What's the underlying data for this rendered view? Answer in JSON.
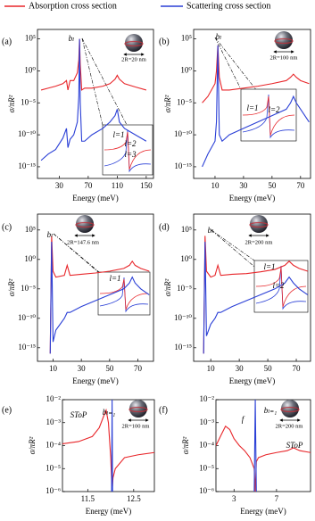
{
  "chart_data": [
    {
      "type": "line",
      "panel_label": "(a)",
      "xlabel": "Energy (meV)",
      "ylabel": "σ/πR²",
      "ylog": true,
      "xlim": [
        0,
        160
      ],
      "ylim": [
        1.5e-17,
        3000000
      ],
      "xticks": [
        30,
        70,
        110,
        150
      ],
      "yticks": [
        {
          "value": 100000,
          "label": "10⁵"
        },
        {
          "value": 1,
          "label": "10⁰"
        },
        {
          "value": 1e-05,
          "label": "10⁻⁵"
        },
        {
          "value": 1e-10,
          "label": "10⁻¹⁰"
        },
        {
          "value": 1e-15,
          "label": "10⁻¹⁵"
        }
      ],
      "x": [
        5,
        15,
        25,
        35,
        40,
        42,
        45,
        50,
        55,
        57,
        58,
        59,
        61,
        65,
        75,
        90,
        100,
        107,
        110,
        113,
        120,
        135,
        150
      ],
      "series": [
        {
          "name": "Absorption cross section",
          "color": "#e8262a",
          "values": [
            0.001,
            0.002,
            0.004,
            0.01,
            0.03,
            0.001,
            0.03,
            0.03,
            0.5,
            50,
            100000,
            10,
            0.001,
            0.002,
            0.002,
            0.004,
            0.01,
            0.05,
            0.2,
            0.05,
            0.01,
            0.003,
            0.001
          ]
        },
        {
          "name": "Scattering cross section",
          "color": "#2a3fd6",
          "values": [
            1e-14,
            1e-13,
            5e-13,
            3e-11,
            1e-09,
            1e-12,
            2e-11,
            1e-10,
            1e-08,
            0.0001,
            100000,
            1e-05,
            1e-11,
            1e-11,
            1e-10,
            1e-09,
            1e-08,
            1e-07,
            1e-06,
            1e-08,
            1e-09,
            1e-10,
            1e-11
          ]
        }
      ],
      "annotations": [
        "bₗ",
        "2R=20 nm",
        "l=1",
        "l=2",
        "l=3"
      ]
    },
    {
      "type": "line",
      "panel_label": "(b)",
      "xlabel": "Energy (meV)",
      "ylabel": "σ/πR²",
      "ylog": true,
      "xlim": [
        -5,
        77
      ],
      "ylim": [
        1.5e-17,
        3000000
      ],
      "xticks": [
        10,
        30,
        50,
        70
      ],
      "yticks": [
        {
          "value": 100000,
          "label": "10⁵"
        },
        {
          "value": 1,
          "label": "10⁰"
        },
        {
          "value": 1e-05,
          "label": "10⁻⁵"
        },
        {
          "value": 1e-10,
          "label": "10⁻¹⁰"
        },
        {
          "value": 1e-15,
          "label": "10⁻¹⁵"
        }
      ],
      "x": [
        1,
        5,
        10,
        11,
        12,
        13,
        15,
        20,
        30,
        40,
        50,
        60,
        63,
        65,
        67,
        70,
        76
      ],
      "series": [
        {
          "color": "#e8262a",
          "values": [
            1e-05,
            0.0001,
            0.01,
            1,
            10000,
            0.1,
            0.001,
            0.001,
            0.002,
            0.004,
            0.01,
            0.03,
            0.1,
            0.3,
            0.1,
            0.03,
            0.01
          ]
        },
        {
          "color": "#2a3fd6",
          "values": [
            1e-15,
            1e-13,
            1e-11,
            1e-08,
            10000,
            1e-10,
            1e-11,
            1e-10,
            1e-09,
            1e-08,
            1e-07,
            1e-06,
            1e-05,
            0.0001,
            1e-05,
            1e-06,
            1e-08
          ]
        }
      ],
      "annotations": [
        "bₗ",
        "2R=100 nm",
        "l=1",
        "l=2"
      ]
    },
    {
      "type": "line",
      "panel_label": "(c)",
      "xlabel": "Energy (meV)",
      "ylabel": "σ/πR²",
      "ylog": true,
      "xlim": [
        -1,
        81
      ],
      "ylim": [
        5e-18,
        50000000
      ],
      "xticks": [
        10,
        30,
        50,
        70
      ],
      "yticks": [
        {
          "value": 100000,
          "label": "10⁵"
        },
        {
          "value": 1,
          "label": "10⁰"
        },
        {
          "value": 1e-05,
          "label": "10⁻⁵"
        },
        {
          "value": 1e-10,
          "label": "10⁻¹⁰"
        },
        {
          "value": 1e-15,
          "label": "10⁻¹⁵"
        }
      ],
      "x": [
        8,
        9,
        10,
        12,
        18,
        20,
        22,
        30,
        40,
        50,
        60,
        64,
        66,
        68,
        72,
        78
      ],
      "series": [
        {
          "color": "#e8262a",
          "values": [
            1e-16,
            10000,
            0.01,
            0.001,
            0.002,
            0.1,
            0.002,
            0.003,
            0.005,
            0.01,
            0.03,
            0.1,
            0.5,
            0.1,
            0.03,
            0.01
          ]
        },
        {
          "color": "#2a3fd6",
          "values": [
            1e-16,
            1000,
            1e-14,
            1e-12,
            1e-10,
            1e-09,
            1e-09,
            1e-08,
            1e-07,
            1e-06,
            1e-05,
            0.0001,
            0.001,
            0.0001,
            1e-05,
            1e-06
          ]
        }
      ],
      "annotations": [
        "bₗ",
        "2R=147.6 nm",
        "l=1"
      ]
    },
    {
      "type": "line",
      "panel_label": "(d)",
      "xlabel": "Energy (meV)",
      "ylabel": "σ/πR²",
      "ylog": true,
      "xlim": [
        -2,
        80
      ],
      "ylim": [
        5e-18,
        50000000
      ],
      "xticks": [
        10,
        30,
        50,
        70
      ],
      "yticks": [
        {
          "value": 100000,
          "label": "10⁵"
        },
        {
          "value": 1,
          "label": "10⁰"
        },
        {
          "value": 1e-05,
          "label": "10⁻⁵"
        },
        {
          "value": 1e-10,
          "label": "10⁻¹⁰"
        },
        {
          "value": 1e-15,
          "label": "10⁻¹⁵"
        }
      ],
      "x": [
        5,
        6,
        7,
        10,
        13,
        15,
        17,
        25,
        35,
        45,
        55,
        62,
        65,
        68,
        72,
        78
      ],
      "series": [
        {
          "color": "#e8262a",
          "values": [
            1e-16,
            10000,
            0.01,
            0.001,
            0.002,
            0.1,
            0.002,
            0.003,
            0.004,
            0.008,
            0.02,
            0.1,
            0.5,
            0.1,
            0.03,
            0.01
          ]
        },
        {
          "color": "#2a3fd6",
          "values": [
            1e-16,
            1000,
            1e-13,
            1e-11,
            1e-10,
            1e-09,
            1e-09,
            1e-08,
            1e-07,
            1e-06,
            1e-05,
            0.0001,
            0.001,
            0.0001,
            1e-05,
            1e-06
          ]
        }
      ],
      "annotations": [
        "bₗ",
        "2R=200 nm",
        "l=1",
        "l=2"
      ]
    },
    {
      "type": "line",
      "panel_label": "(e)",
      "xlabel": "Energy (meV)",
      "ylabel": "σ/πR²",
      "ylog": true,
      "xlim": [
        10.95,
        12.95
      ],
      "ylim": [
        1e-06,
        0.01
      ],
      "xticks": [
        11.5,
        12.5
      ],
      "yticks": [
        {
          "value": 0.01,
          "label": "10⁻²"
        },
        {
          "value": 0.001,
          "label": "10⁻³"
        },
        {
          "value": 0.0001,
          "label": "10⁻⁴"
        },
        {
          "value": 1e-05,
          "label": "10⁻⁵"
        },
        {
          "value": 1e-06,
          "label": "10⁻⁶"
        }
      ],
      "x": [
        10.95,
        11.3,
        11.6,
        11.75,
        11.85,
        11.9,
        11.95,
        12.0,
        12.02,
        12.03,
        12.04,
        12.05,
        12.1,
        12.3,
        12.6,
        12.95
      ],
      "series": [
        {
          "color": "#e8262a",
          "values": [
            0.00012,
            0.00015,
            0.00025,
            0.0006,
            0.002,
            0.0035,
            0.001,
            3e-05,
            3e-06,
            1e-06,
            2e-06,
            4e-06,
            1e-05,
            3e-05,
            4e-05,
            5e-05
          ]
        },
        {
          "color": "#2a3fd6",
          "values": [
            null,
            null,
            null,
            null,
            null,
            null,
            null,
            null,
            1e-06,
            0.01,
            1e-06,
            null,
            null,
            null,
            null,
            null
          ]
        }
      ],
      "annotations": [
        "SToP",
        "bₗ₌₁",
        "2R=100 nm"
      ]
    },
    {
      "type": "line",
      "panel_label": "(f)",
      "xlabel": "Energy (meV)",
      "ylabel": "σ/πR²",
      "ylog": true,
      "xlim": [
        1.3,
        10.2
      ],
      "ylim": [
        1e-06,
        0.01
      ],
      "xticks": [
        3,
        7
      ],
      "yticks": [
        {
          "value": 0.01,
          "label": "10⁻²"
        },
        {
          "value": 0.001,
          "label": "10⁻³"
        },
        {
          "value": 0.0001,
          "label": "10⁻⁴"
        },
        {
          "value": 1e-05,
          "label": "10⁻⁵"
        },
        {
          "value": 1e-06,
          "label": "10⁻⁶"
        }
      ],
      "x": [
        1.3,
        1.8,
        2.2,
        2.6,
        3,
        3.5,
        4,
        4.5,
        4.9,
        5.0,
        5.1,
        5.3,
        6,
        7,
        8,
        8.6,
        9.2,
        10.2
      ],
      "series": [
        {
          "color": "#e8262a",
          "values": [
            0.0001,
            0.0003,
            0.0007,
            0.0005,
            0.0002,
            0.0001,
            6e-05,
            3e-05,
            1e-05,
            1e-06,
            2e-05,
            3e-05,
            4e-05,
            5e-05,
            6e-05,
            8e-05,
            6e-05,
            5e-05
          ]
        },
        {
          "color": "#2a3fd6",
          "values": [
            null,
            null,
            null,
            null,
            null,
            null,
            null,
            null,
            1e-06,
            0.01,
            1e-06,
            null,
            null,
            null,
            null,
            null,
            null,
            null
          ]
        }
      ],
      "annotations": [
        "f",
        "bₗ₌₁",
        "SToP",
        "2R=200 nm"
      ]
    }
  ]
}
